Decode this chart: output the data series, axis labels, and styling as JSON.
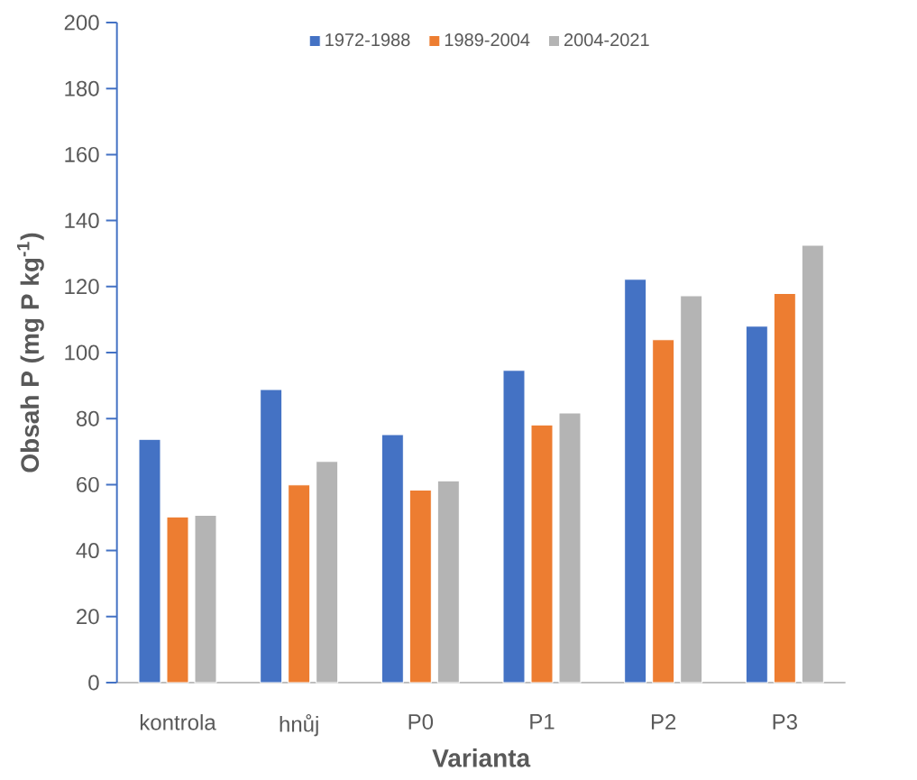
{
  "chart_data": {
    "type": "bar",
    "xlabel": "Varianta",
    "ylabel": "Obsah P (mg P kg$^{-1}$)",
    "categories": [
      "kontrola",
      "hnůj",
      "P0",
      "P1",
      "P2",
      "P3"
    ],
    "series": [
      {
        "name": "1972-1988",
        "color": "#4472c4",
        "values": [
          73.7,
          88.8,
          75.1,
          94.6,
          122.2,
          108.0
        ]
      },
      {
        "name": "1989-2004",
        "color": "#ed7d31",
        "values": [
          50.2,
          59.9,
          58.3,
          78.1,
          103.9,
          117.9
        ]
      },
      {
        "name": "2004-2021",
        "color": "#b4b4b4",
        "values": [
          50.7,
          67.0,
          61.1,
          81.7,
          117.2,
          132.5
        ]
      }
    ],
    "ylim": [
      0,
      200
    ],
    "yticks": [
      0,
      20,
      40,
      60,
      80,
      100,
      120,
      140,
      160,
      180,
      200
    ],
    "legend": "top"
  }
}
